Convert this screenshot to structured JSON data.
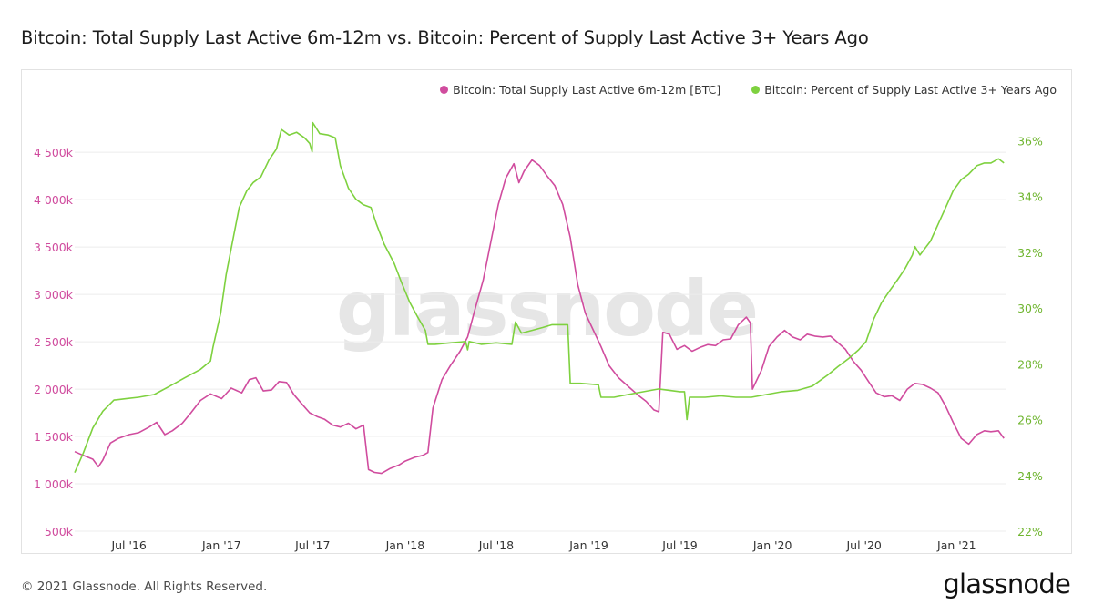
{
  "page": {
    "title": "Bitcoin: Total Supply Last Active 6m-12m vs. Bitcoin: Percent of Supply Last Active 3+ Years Ago",
    "copyright": "© 2021 Glassnode. All Rights Reserved.",
    "logo": "glassnode",
    "watermark": "glassnode"
  },
  "colors": {
    "pink": "#d04c9e",
    "green": "#7ed13f",
    "grid": "#ececec",
    "tick_text": "#555555",
    "watermark": "#e6e6e6"
  },
  "chart_data": {
    "type": "line",
    "title": "Bitcoin: Total Supply Last Active 6m-12m vs. Bitcoin: Percent of Supply Last Active 3+ Years Ago",
    "x_range": [
      "2016-03-15",
      "2021-04-10"
    ],
    "x_ticks": [
      {
        "label": "Jul '16",
        "date": "2016-07-01"
      },
      {
        "label": "Jan '17",
        "date": "2017-01-01"
      },
      {
        "label": "Jul '17",
        "date": "2017-07-01"
      },
      {
        "label": "Jan '18",
        "date": "2018-01-01"
      },
      {
        "label": "Jul '18",
        "date": "2018-07-01"
      },
      {
        "label": "Jan '19",
        "date": "2019-01-01"
      },
      {
        "label": "Jul '19",
        "date": "2019-07-01"
      },
      {
        "label": "Jan '20",
        "date": "2020-01-01"
      },
      {
        "label": "Jul '20",
        "date": "2020-07-01"
      },
      {
        "label": "Jan '21",
        "date": "2021-01-01"
      }
    ],
    "y_left": {
      "range": [
        500000,
        4800000
      ],
      "ticks": [
        500000,
        1000000,
        1500000,
        2000000,
        2500000,
        3000000,
        3500000,
        4000000,
        4500000
      ],
      "tick_labels": [
        "500k",
        "1 000k",
        "1 500k",
        "2 000k",
        "2 500k",
        "3 000k",
        "3 500k",
        "4 000k",
        "4 500k"
      ]
    },
    "y_right": {
      "range": [
        22,
        36.6
      ],
      "ticks": [
        22,
        24,
        26,
        28,
        30,
        32,
        34,
        36
      ],
      "tick_labels": [
        "22%",
        "24%",
        "26%",
        "28%",
        "30%",
        "32%",
        "34%",
        "36%"
      ]
    },
    "legend_position": "top-right",
    "grid": "horizontal",
    "series": [
      {
        "name": "Bitcoin: Total Supply Last Active 6m-12m [BTC]",
        "axis": "left",
        "color": "#d04c9e",
        "points": [
          [
            "2016-03-15",
            1340000
          ],
          [
            "2016-04-01",
            1300000
          ],
          [
            "2016-04-20",
            1260000
          ],
          [
            "2016-05-01",
            1180000
          ],
          [
            "2016-05-10",
            1250000
          ],
          [
            "2016-05-25",
            1430000
          ],
          [
            "2016-06-10",
            1480000
          ],
          [
            "2016-07-01",
            1520000
          ],
          [
            "2016-07-20",
            1540000
          ],
          [
            "2016-08-10",
            1600000
          ],
          [
            "2016-08-25",
            1650000
          ],
          [
            "2016-09-10",
            1520000
          ],
          [
            "2016-09-25",
            1560000
          ],
          [
            "2016-10-15",
            1640000
          ],
          [
            "2016-11-01",
            1750000
          ],
          [
            "2016-11-20",
            1880000
          ],
          [
            "2016-12-10",
            1950000
          ],
          [
            "2017-01-01",
            1900000
          ],
          [
            "2017-01-20",
            2010000
          ],
          [
            "2017-02-10",
            1960000
          ],
          [
            "2017-02-25",
            2100000
          ],
          [
            "2017-03-10",
            2120000
          ],
          [
            "2017-03-25",
            1980000
          ],
          [
            "2017-04-10",
            1990000
          ],
          [
            "2017-04-25",
            2080000
          ],
          [
            "2017-05-10",
            2070000
          ],
          [
            "2017-05-25",
            1940000
          ],
          [
            "2017-06-10",
            1840000
          ],
          [
            "2017-06-25",
            1750000
          ],
          [
            "2017-07-10",
            1710000
          ],
          [
            "2017-07-25",
            1680000
          ],
          [
            "2017-08-10",
            1620000
          ],
          [
            "2017-08-25",
            1600000
          ],
          [
            "2017-09-10",
            1640000
          ],
          [
            "2017-09-25",
            1580000
          ],
          [
            "2017-10-10",
            1620000
          ],
          [
            "2017-10-20",
            1150000
          ],
          [
            "2017-11-01",
            1120000
          ],
          [
            "2017-11-15",
            1110000
          ],
          [
            "2017-12-01",
            1160000
          ],
          [
            "2017-12-20",
            1200000
          ],
          [
            "2018-01-01",
            1240000
          ],
          [
            "2018-01-20",
            1280000
          ],
          [
            "2018-02-05",
            1300000
          ],
          [
            "2018-02-15",
            1330000
          ],
          [
            "2018-02-25",
            1800000
          ],
          [
            "2018-03-15",
            2100000
          ],
          [
            "2018-04-01",
            2250000
          ],
          [
            "2018-04-20",
            2400000
          ],
          [
            "2018-05-05",
            2550000
          ],
          [
            "2018-05-20",
            2850000
          ],
          [
            "2018-06-05",
            3150000
          ],
          [
            "2018-06-20",
            3550000
          ],
          [
            "2018-07-05",
            3950000
          ],
          [
            "2018-07-20",
            4230000
          ],
          [
            "2018-08-05",
            4380000
          ],
          [
            "2018-08-15",
            4180000
          ],
          [
            "2018-08-25",
            4300000
          ],
          [
            "2018-09-10",
            4420000
          ],
          [
            "2018-09-25",
            4360000
          ],
          [
            "2018-10-10",
            4250000
          ],
          [
            "2018-10-25",
            4150000
          ],
          [
            "2018-11-10",
            3950000
          ],
          [
            "2018-11-25",
            3600000
          ],
          [
            "2018-12-10",
            3100000
          ],
          [
            "2018-12-25",
            2800000
          ],
          [
            "2019-01-10",
            2620000
          ],
          [
            "2019-01-25",
            2450000
          ],
          [
            "2019-02-10",
            2250000
          ],
          [
            "2019-03-01",
            2120000
          ],
          [
            "2019-03-20",
            2030000
          ],
          [
            "2019-04-10",
            1930000
          ],
          [
            "2019-04-25",
            1870000
          ],
          [
            "2019-05-10",
            1780000
          ],
          [
            "2019-05-20",
            1760000
          ],
          [
            "2019-05-28",
            2600000
          ],
          [
            "2019-06-10",
            2580000
          ],
          [
            "2019-06-25",
            2420000
          ],
          [
            "2019-07-10",
            2460000
          ],
          [
            "2019-07-25",
            2400000
          ],
          [
            "2019-08-10",
            2440000
          ],
          [
            "2019-08-25",
            2470000
          ],
          [
            "2019-09-10",
            2460000
          ],
          [
            "2019-09-25",
            2520000
          ],
          [
            "2019-10-10",
            2530000
          ],
          [
            "2019-10-25",
            2680000
          ],
          [
            "2019-11-10",
            2760000
          ],
          [
            "2019-11-18",
            2700000
          ],
          [
            "2019-11-22",
            2000000
          ],
          [
            "2019-12-10",
            2200000
          ],
          [
            "2019-12-25",
            2450000
          ],
          [
            "2020-01-10",
            2550000
          ],
          [
            "2020-01-25",
            2620000
          ],
          [
            "2020-02-10",
            2550000
          ],
          [
            "2020-02-25",
            2520000
          ],
          [
            "2020-03-10",
            2580000
          ],
          [
            "2020-03-25",
            2560000
          ],
          [
            "2020-04-10",
            2550000
          ],
          [
            "2020-04-25",
            2560000
          ],
          [
            "2020-05-10",
            2490000
          ],
          [
            "2020-05-25",
            2420000
          ],
          [
            "2020-06-10",
            2290000
          ],
          [
            "2020-06-25",
            2200000
          ],
          [
            "2020-07-10",
            2080000
          ],
          [
            "2020-07-25",
            1960000
          ],
          [
            "2020-08-10",
            1920000
          ],
          [
            "2020-08-25",
            1930000
          ],
          [
            "2020-09-10",
            1880000
          ],
          [
            "2020-09-25",
            2000000
          ],
          [
            "2020-10-10",
            2060000
          ],
          [
            "2020-10-25",
            2050000
          ],
          [
            "2020-11-10",
            2010000
          ],
          [
            "2020-11-25",
            1960000
          ],
          [
            "2020-12-10",
            1820000
          ],
          [
            "2020-12-25",
            1650000
          ],
          [
            "2021-01-10",
            1480000
          ],
          [
            "2021-01-25",
            1420000
          ],
          [
            "2021-02-10",
            1520000
          ],
          [
            "2021-02-25",
            1560000
          ],
          [
            "2021-03-10",
            1550000
          ],
          [
            "2021-03-25",
            1560000
          ],
          [
            "2021-04-05",
            1480000
          ]
        ]
      },
      {
        "name": "Bitcoin: Percent of Supply Last Active 3+ Years Ago",
        "axis": "right",
        "color": "#7ed13f",
        "points": [
          [
            "2016-03-15",
            24.1
          ],
          [
            "2016-04-01",
            24.8
          ],
          [
            "2016-04-20",
            25.7
          ],
          [
            "2016-05-10",
            26.3
          ],
          [
            "2016-06-01",
            26.7
          ],
          [
            "2016-06-25",
            26.75
          ],
          [
            "2016-07-20",
            26.8
          ],
          [
            "2016-08-20",
            26.9
          ],
          [
            "2016-09-20",
            27.2
          ],
          [
            "2016-10-20",
            27.5
          ],
          [
            "2016-11-20",
            27.8
          ],
          [
            "2016-12-10",
            28.1
          ],
          [
            "2016-12-15",
            28.6
          ],
          [
            "2016-12-30",
            29.8
          ],
          [
            "2017-01-10",
            31.2
          ],
          [
            "2017-01-25",
            32.6
          ],
          [
            "2017-02-05",
            33.6
          ],
          [
            "2017-02-20",
            34.2
          ],
          [
            "2017-03-05",
            34.5
          ],
          [
            "2017-03-20",
            34.7
          ],
          [
            "2017-04-05",
            35.3
          ],
          [
            "2017-04-20",
            35.7
          ],
          [
            "2017-04-30",
            36.4
          ],
          [
            "2017-05-15",
            36.2
          ],
          [
            "2017-05-30",
            36.3
          ],
          [
            "2017-06-15",
            36.1
          ],
          [
            "2017-06-25",
            35.9
          ],
          [
            "2017-06-30",
            35.6
          ],
          [
            "2017-07-01",
            36.65
          ],
          [
            "2017-07-15",
            36.25
          ],
          [
            "2017-08-01",
            36.2
          ],
          [
            "2017-08-15",
            36.1
          ],
          [
            "2017-08-25",
            35.1
          ],
          [
            "2017-09-10",
            34.3
          ],
          [
            "2017-09-25",
            33.9
          ],
          [
            "2017-10-10",
            33.7
          ],
          [
            "2017-10-25",
            33.6
          ],
          [
            "2017-11-05",
            33.0
          ],
          [
            "2017-11-20",
            32.3
          ],
          [
            "2017-12-10",
            31.6
          ],
          [
            "2017-12-25",
            30.9
          ],
          [
            "2018-01-10",
            30.2
          ],
          [
            "2018-01-25",
            29.7
          ],
          [
            "2018-02-10",
            29.2
          ],
          [
            "2018-02-15",
            28.7
          ],
          [
            "2018-03-01",
            28.7
          ],
          [
            "2018-04-01",
            28.75
          ],
          [
            "2018-05-01",
            28.8
          ],
          [
            "2018-05-05",
            28.5
          ],
          [
            "2018-05-08",
            28.8
          ],
          [
            "2018-06-01",
            28.7
          ],
          [
            "2018-07-01",
            28.75
          ],
          [
            "2018-08-01",
            28.7
          ],
          [
            "2018-08-08",
            29.5
          ],
          [
            "2018-08-20",
            29.1
          ],
          [
            "2018-09-10",
            29.2
          ],
          [
            "2018-10-01",
            29.3
          ],
          [
            "2018-10-20",
            29.4
          ],
          [
            "2018-11-20",
            29.4
          ],
          [
            "2018-11-25",
            27.3
          ],
          [
            "2018-12-15",
            27.3
          ],
          [
            "2019-01-20",
            27.25
          ],
          [
            "2019-01-25",
            26.8
          ],
          [
            "2019-02-20",
            26.8
          ],
          [
            "2019-03-20",
            26.9
          ],
          [
            "2019-04-20",
            27.0
          ],
          [
            "2019-05-20",
            27.1
          ],
          [
            "2019-06-10",
            27.05
          ],
          [
            "2019-07-01",
            27.0
          ],
          [
            "2019-07-10",
            27.0
          ],
          [
            "2019-07-15",
            26.0
          ],
          [
            "2019-07-20",
            26.8
          ],
          [
            "2019-08-20",
            26.8
          ],
          [
            "2019-09-20",
            26.85
          ],
          [
            "2019-10-20",
            26.8
          ],
          [
            "2019-11-20",
            26.8
          ],
          [
            "2019-12-20",
            26.9
          ],
          [
            "2020-01-20",
            27.0
          ],
          [
            "2020-02-20",
            27.05
          ],
          [
            "2020-03-20",
            27.2
          ],
          [
            "2020-04-20",
            27.6
          ],
          [
            "2020-05-10",
            27.9
          ],
          [
            "2020-06-01",
            28.2
          ],
          [
            "2020-06-20",
            28.5
          ],
          [
            "2020-07-05",
            28.8
          ],
          [
            "2020-07-20",
            29.6
          ],
          [
            "2020-08-05",
            30.2
          ],
          [
            "2020-08-20",
            30.6
          ],
          [
            "2020-09-05",
            31.0
          ],
          [
            "2020-09-20",
            31.4
          ],
          [
            "2020-10-05",
            31.9
          ],
          [
            "2020-10-10",
            32.2
          ],
          [
            "2020-10-20",
            31.9
          ],
          [
            "2020-11-10",
            32.4
          ],
          [
            "2020-11-25",
            33.0
          ],
          [
            "2020-12-10",
            33.6
          ],
          [
            "2020-12-25",
            34.2
          ],
          [
            "2021-01-10",
            34.6
          ],
          [
            "2021-01-25",
            34.8
          ],
          [
            "2021-02-10",
            35.1
          ],
          [
            "2021-02-25",
            35.2
          ],
          [
            "2021-03-10",
            35.2
          ],
          [
            "2021-03-25",
            35.35
          ],
          [
            "2021-04-05",
            35.2
          ]
        ]
      }
    ]
  }
}
